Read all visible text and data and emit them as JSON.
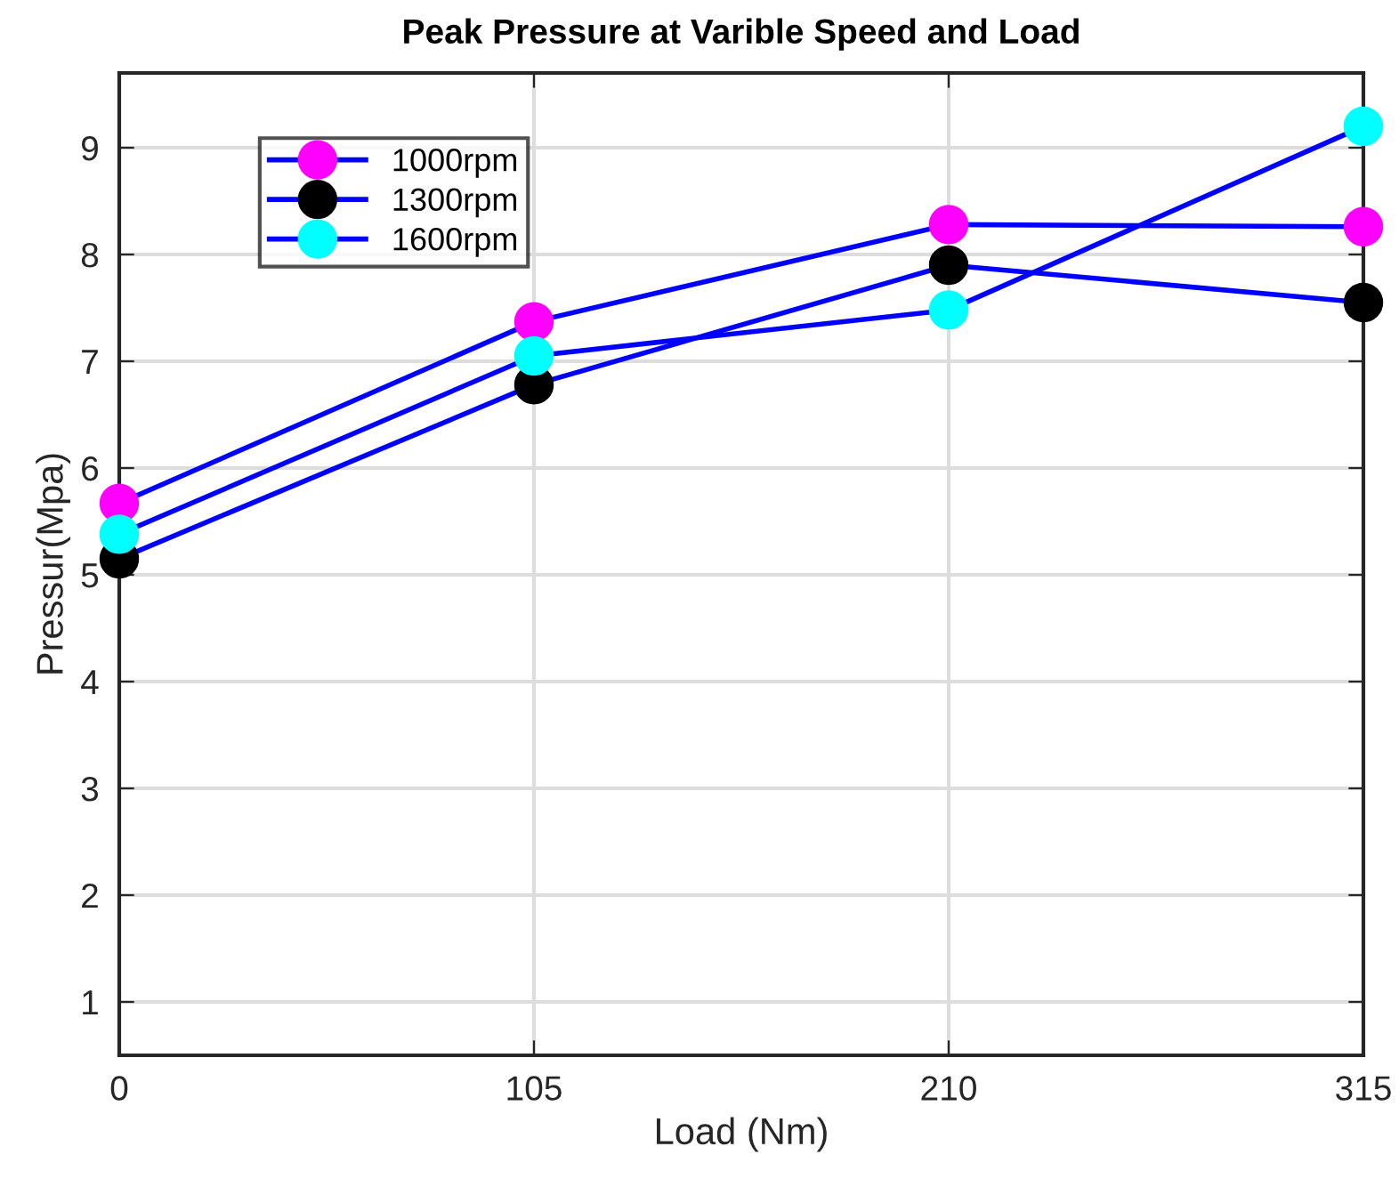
{
  "chart_data": {
    "type": "line",
    "title": "Peak Pressure at Varible Speed and Load",
    "xlabel": "Load (Nm)",
    "ylabel": "Pressur(Mpa)",
    "x": [
      0,
      105,
      210,
      315
    ],
    "series": [
      {
        "name": "1000rpm",
        "color": "#ff00ff",
        "values": [
          5.67,
          7.37,
          8.28,
          8.26
        ]
      },
      {
        "name": "1300rpm",
        "color": "#000000",
        "values": [
          5.15,
          6.78,
          7.9,
          7.55
        ]
      },
      {
        "name": "1600rpm",
        "color": "#00ffff",
        "values": [
          5.38,
          7.05,
          7.48,
          9.2
        ]
      }
    ],
    "xlim": [
      0,
      315
    ],
    "xticks": [
      0,
      105,
      210,
      315
    ],
    "ylim": [
      0.5,
      9.7
    ],
    "yticks": [
      1,
      2,
      3,
      4,
      5,
      6,
      7,
      8,
      9
    ],
    "grid": true,
    "legend": "top left",
    "marker": "circle",
    "line_style": "solid"
  }
}
